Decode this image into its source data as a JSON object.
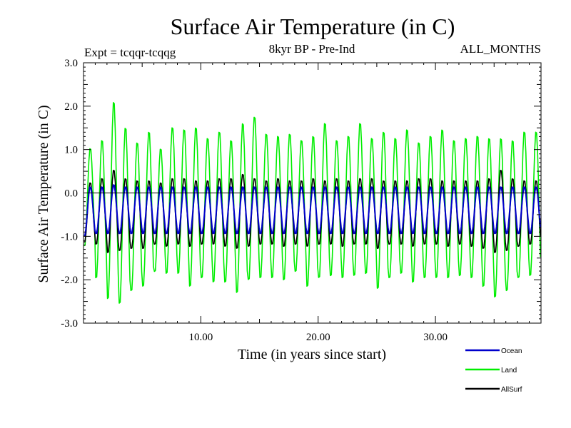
{
  "chart_data": {
    "type": "line",
    "title": "Surface Air Temperature (in C)",
    "subtitle_left": "Expt = tcqqr-tcqqg",
    "subtitle_center": "8kyr BP - Pre-Ind",
    "subtitle_right": "ALL_MONTHS",
    "xlabel": "Time (in years since start)",
    "ylabel": "Surface Air Temperature (in C)",
    "xlim": [
      0,
      39
    ],
    "ylim": [
      -3.0,
      3.0
    ],
    "x_ticks": [
      10,
      20,
      30
    ],
    "x_tick_labels": [
      "10.00",
      "20.00",
      "30.00"
    ],
    "y_ticks": [
      3.0,
      2.0,
      1.0,
      0.0,
      -1.0,
      -2.0,
      -3.0
    ],
    "y_tick_labels": [
      "3.0",
      "2.0",
      "1.0",
      "0.0",
      "-1.0",
      "-2.0",
      "-3.0"
    ],
    "zero_line": 0.0,
    "series": [
      {
        "name": "Land",
        "color": "#00ee00",
        "sampling": "monthly",
        "annual_max": [
          1.05,
          1.25,
          2.15,
          1.55,
          1.2,
          1.45,
          1.05,
          1.55,
          1.5,
          1.55,
          1.3,
          1.45,
          1.25,
          1.65,
          1.8,
          1.4,
          1.35,
          1.4,
          1.25,
          1.35,
          1.65,
          1.25,
          1.35,
          1.65,
          1.3,
          1.45,
          1.3,
          1.5,
          1.2,
          1.35,
          1.5,
          1.25,
          1.3,
          1.35,
          1.3,
          1.3,
          1.25,
          1.45,
          1.45
        ],
        "annual_min": [
          -1.25,
          -2.0,
          -2.5,
          -2.6,
          -2.3,
          -2.2,
          -1.85,
          -1.9,
          -1.9,
          -2.2,
          -2.0,
          -2.1,
          -2.1,
          -2.35,
          -2.05,
          -2.0,
          -2.0,
          -2.05,
          -1.85,
          -2.2,
          -2.0,
          -1.95,
          -2.0,
          -1.95,
          -1.9,
          -2.25,
          -2.0,
          -1.9,
          -2.1,
          -2.0,
          -2.0,
          -2.0,
          -1.95,
          -2.0,
          -2.2,
          -2.45,
          -2.3,
          -2.0,
          -1.95
        ]
      },
      {
        "name": "AllSurf",
        "color": "#000000",
        "sampling": "monthly",
        "annual_max": [
          0.25,
          0.35,
          0.55,
          0.35,
          0.3,
          0.3,
          0.25,
          0.35,
          0.35,
          0.3,
          0.3,
          0.35,
          0.35,
          0.45,
          0.35,
          0.3,
          0.35,
          0.3,
          0.3,
          0.35,
          0.3,
          0.35,
          0.3,
          0.35,
          0.35,
          0.3,
          0.3,
          0.3,
          0.35,
          0.35,
          0.3,
          0.3,
          0.3,
          0.3,
          0.35,
          0.55,
          0.35,
          0.3,
          0.3
        ],
        "annual_min": [
          -1.15,
          -1.2,
          -1.4,
          -1.35,
          -1.3,
          -1.3,
          -1.2,
          -1.25,
          -1.2,
          -1.25,
          -1.2,
          -1.2,
          -1.25,
          -1.3,
          -1.25,
          -1.2,
          -1.2,
          -1.25,
          -1.2,
          -1.25,
          -1.2,
          -1.2,
          -1.25,
          -1.2,
          -1.2,
          -1.3,
          -1.2,
          -1.2,
          -1.25,
          -1.2,
          -1.2,
          -1.25,
          -1.2,
          -1.25,
          -1.3,
          -1.4,
          -1.35,
          -1.25,
          -1.2
        ]
      },
      {
        "name": "Ocean",
        "color": "#0000cc",
        "sampling": "monthly",
        "annual_max": [
          0.15,
          0.15,
          0.2,
          0.15,
          0.15,
          0.15,
          0.15,
          0.15,
          0.15,
          0.15,
          0.15,
          0.15,
          0.15,
          0.15,
          0.15,
          0.15,
          0.15,
          0.15,
          0.15,
          0.15,
          0.15,
          0.15,
          0.15,
          0.15,
          0.15,
          0.15,
          0.15,
          0.15,
          0.15,
          0.15,
          0.15,
          0.15,
          0.15,
          0.15,
          0.15,
          0.15,
          0.15,
          0.15,
          0.15
        ],
        "annual_min": [
          -1.0,
          -0.95,
          -0.95,
          -0.95,
          -0.95,
          -0.95,
          -0.95,
          -0.95,
          -0.95,
          -0.95,
          -0.95,
          -0.95,
          -0.95,
          -0.95,
          -0.95,
          -0.95,
          -0.95,
          -0.95,
          -0.95,
          -0.95,
          -0.95,
          -0.95,
          -0.95,
          -0.95,
          -0.95,
          -0.95,
          -0.95,
          -0.95,
          -0.95,
          -0.95,
          -0.95,
          -0.95,
          -0.95,
          -0.95,
          -0.95,
          -0.95,
          -0.95,
          -0.95,
          -0.95
        ]
      }
    ],
    "legend": [
      {
        "name": "Ocean",
        "color": "#0000cc"
      },
      {
        "name": "Land",
        "color": "#00ee00"
      },
      {
        "name": "AllSurf",
        "color": "#000000"
      }
    ],
    "legend_position": "bottom-right"
  }
}
